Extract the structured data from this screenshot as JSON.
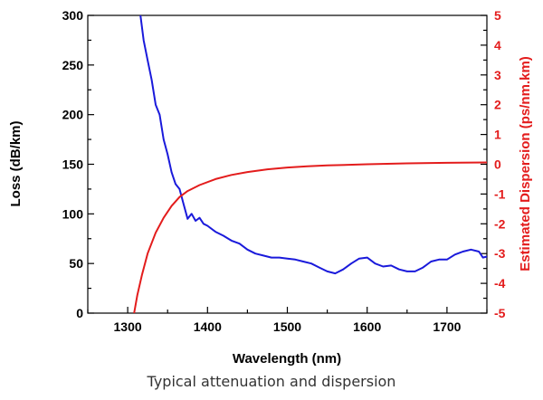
{
  "chart_data": {
    "type": "line",
    "xlabel": "Wavelength (nm)",
    "ylabel_left": "Loss (dB/km)",
    "ylabel_right": "Estimated Dispersion (ps/nm.km)",
    "xlim": [
      1250,
      1750
    ],
    "ylim_left": [
      0,
      300
    ],
    "ylim_right": [
      -5,
      5
    ],
    "xticks": [
      1300,
      1400,
      1500,
      1600,
      1700
    ],
    "yticks_left": [
      0,
      50,
      100,
      150,
      200,
      250,
      300
    ],
    "yticks_right": [
      -5,
      -4,
      -3,
      -2,
      -1,
      0,
      1,
      2,
      3,
      4,
      5
    ],
    "grid": false,
    "colors": {
      "loss": "#1a1adb",
      "dispersion": "#e31c1c",
      "right_axis": "#e31c1c",
      "left_axis": "#000000"
    },
    "series": [
      {
        "axis": "left",
        "color": "#1a1adb",
        "x": [
          1316,
          1320,
          1325,
          1330,
          1335,
          1340,
          1345,
          1350,
          1355,
          1360,
          1365,
          1370,
          1375,
          1380,
          1385,
          1390,
          1395,
          1400,
          1410,
          1420,
          1430,
          1440,
          1450,
          1460,
          1470,
          1480,
          1490,
          1500,
          1510,
          1520,
          1530,
          1540,
          1550,
          1560,
          1570,
          1580,
          1590,
          1600,
          1610,
          1620,
          1630,
          1640,
          1650,
          1660,
          1670,
          1680,
          1690,
          1700,
          1710,
          1720,
          1730,
          1740,
          1745,
          1750
        ],
        "y": [
          300,
          275,
          255,
          235,
          210,
          200,
          175,
          160,
          142,
          130,
          125,
          110,
          95,
          100,
          93,
          96,
          90,
          88,
          82,
          78,
          73,
          70,
          64,
          60,
          58,
          56,
          56,
          55,
          54,
          52,
          50,
          46,
          42,
          40,
          44,
          50,
          55,
          56,
          50,
          47,
          48,
          44,
          42,
          42,
          46,
          52,
          54,
          54,
          59,
          62,
          64,
          62,
          56,
          57
        ]
      },
      {
        "axis": "right",
        "color": "#e31c1c",
        "x": [
          1308,
          1312,
          1318,
          1325,
          1335,
          1345,
          1355,
          1365,
          1375,
          1390,
          1410,
          1430,
          1450,
          1475,
          1500,
          1525,
          1550,
          1600,
          1650,
          1700,
          1750
        ],
        "y": [
          -5,
          -4.4,
          -3.7,
          -3.0,
          -2.3,
          -1.8,
          -1.4,
          -1.1,
          -0.9,
          -0.7,
          -0.5,
          -0.36,
          -0.26,
          -0.17,
          -0.11,
          -0.07,
          -0.04,
          0.0,
          0.03,
          0.05,
          0.06
        ]
      }
    ]
  },
  "caption": "Typical attenuation and dispersion"
}
